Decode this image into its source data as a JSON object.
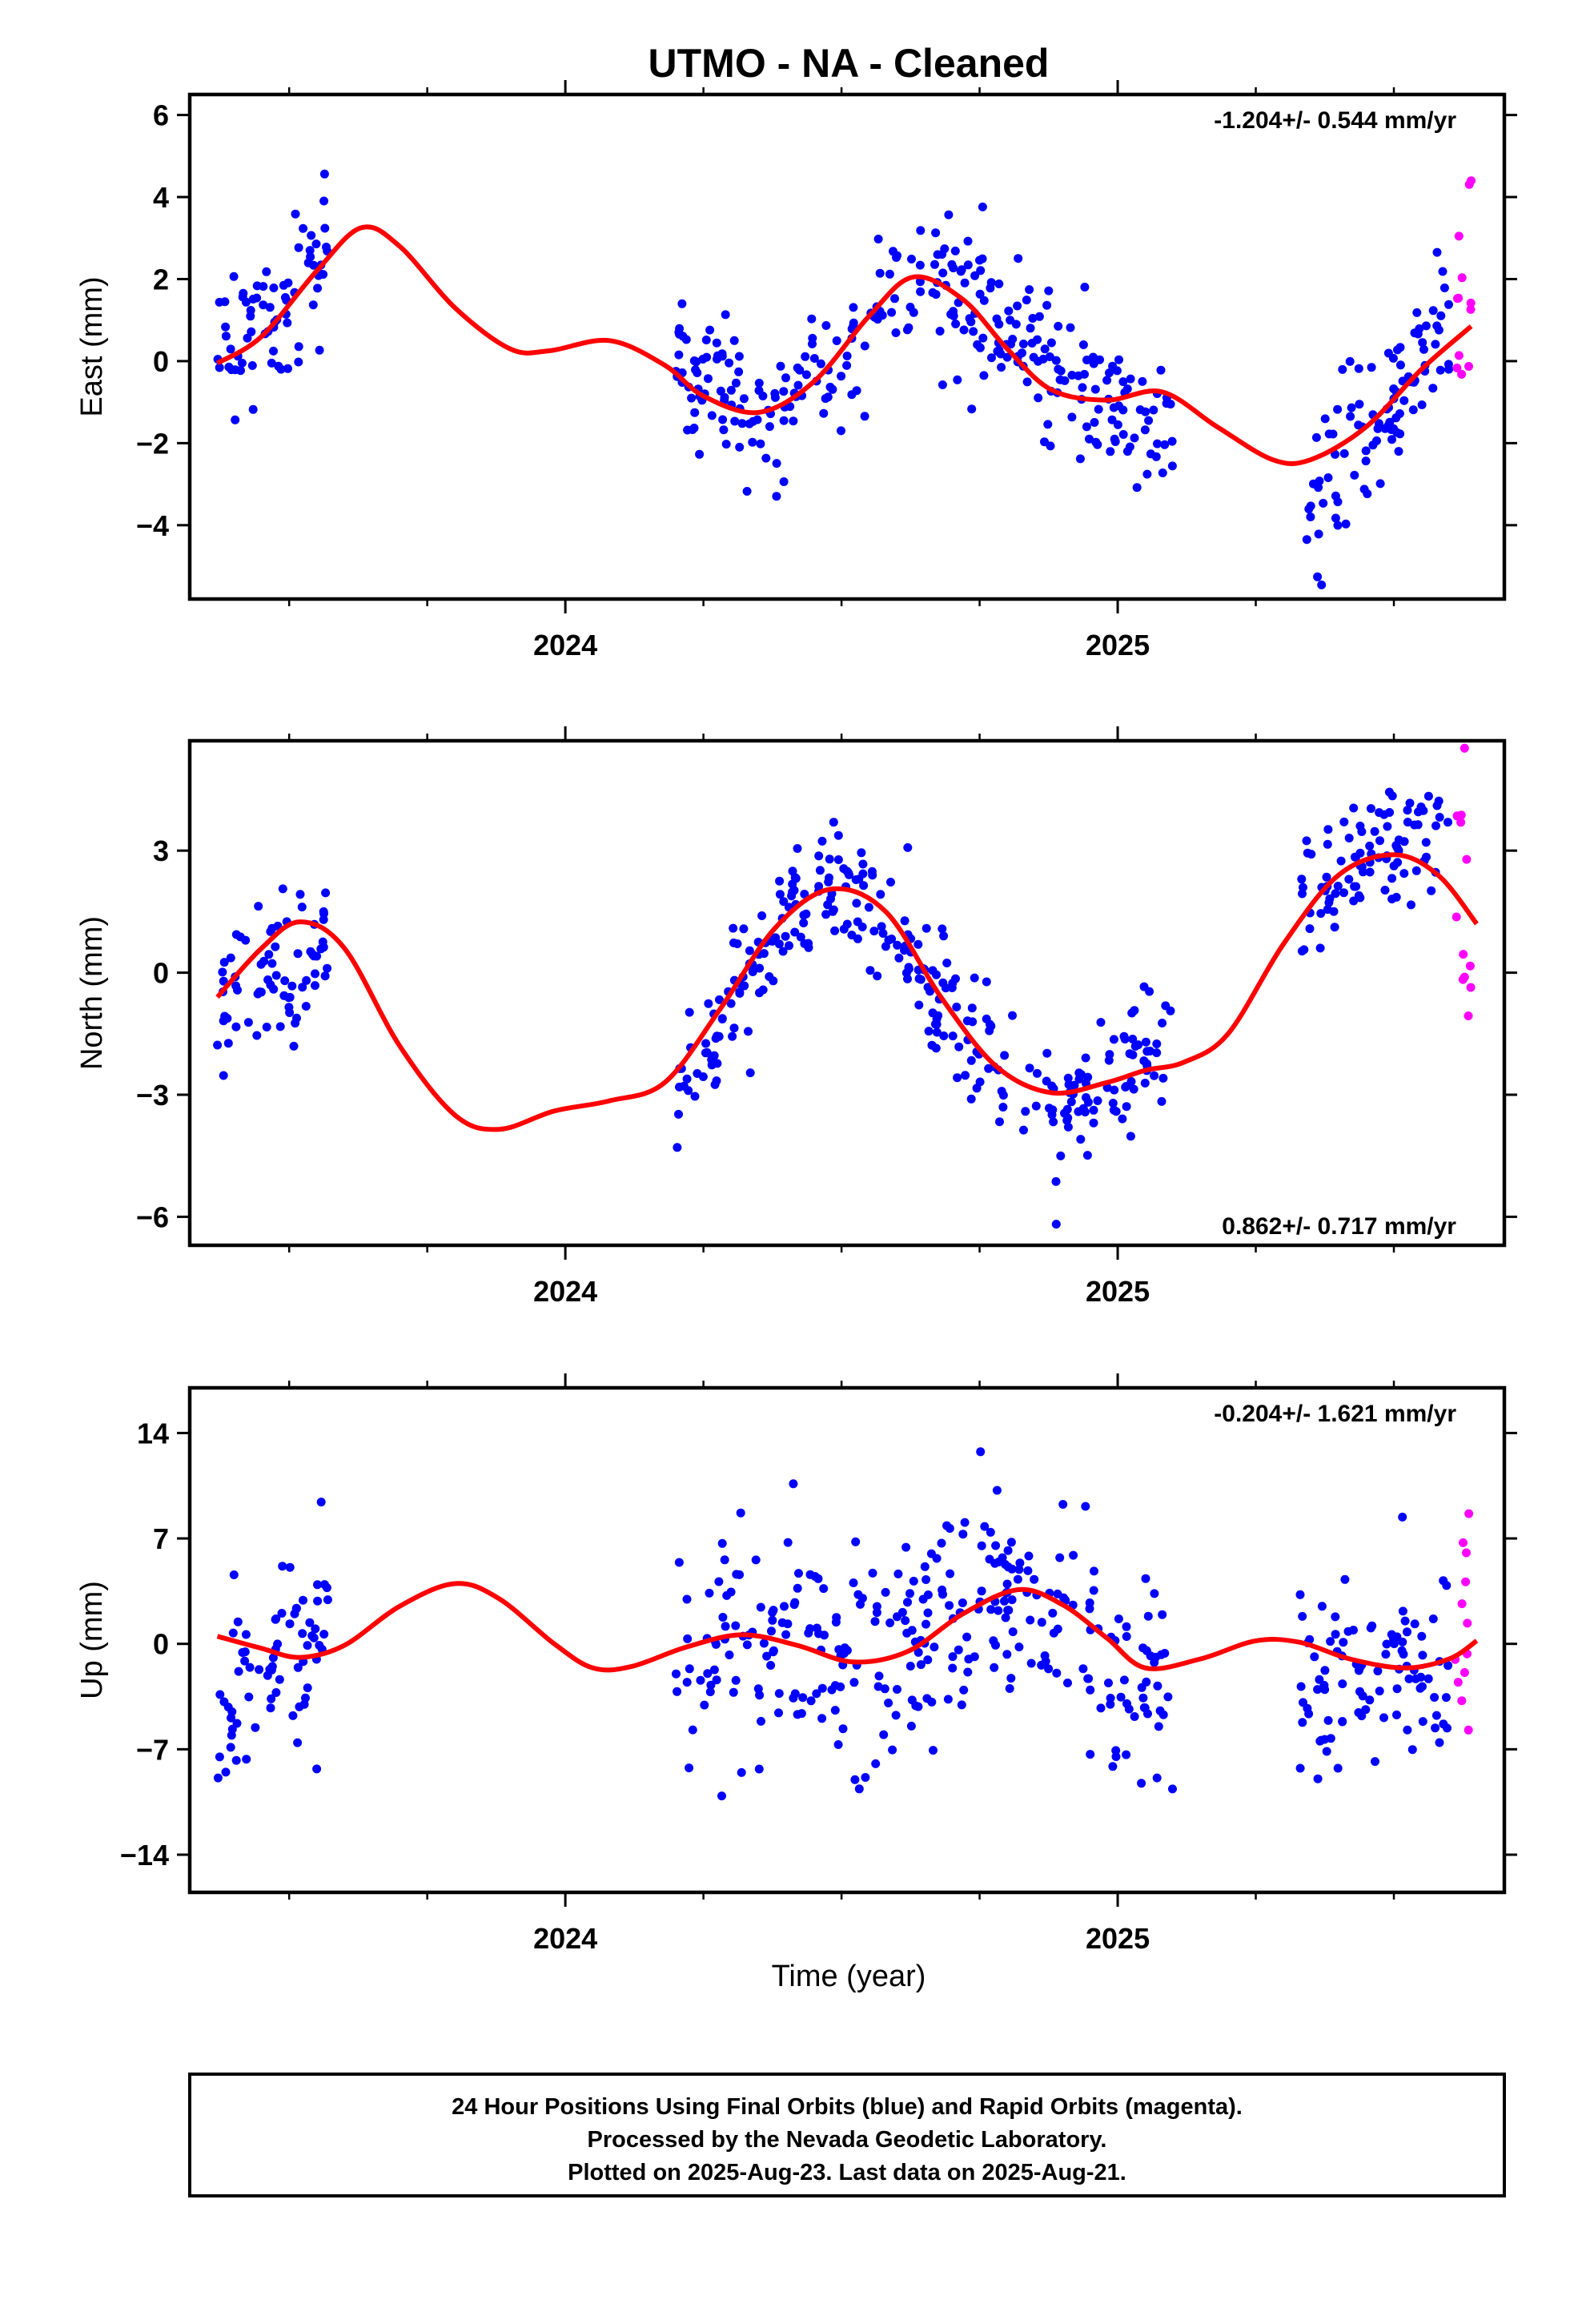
{
  "title": "UTMO  - NA - Cleaned",
  "xlabel": "Time (year)",
  "footer": {
    "line1": "24 Hour Positions Using Final Orbits (blue) and Rapid Orbits (magenta).",
    "line2": "Processed by the Nevada Geodetic Laboratory.",
    "line3": "Plotted on 2025-Aug-23. Last data on 2025-Aug-21."
  },
  "colors": {
    "final": "#0000ff",
    "rapid": "#ff00ff",
    "fit": "#ff0000"
  },
  "chart_data": [
    {
      "type": "scatter",
      "component": "east",
      "ylabel": "East (mm)",
      "rate": "-1.204+/- 0.544 mm/yr",
      "xlim": [
        2023.32,
        2025.7
      ],
      "ylim": [
        -5.8,
        6.5
      ],
      "yticks": [
        6,
        4,
        2,
        0,
        -2,
        -4
      ],
      "ytick_labels": [
        "6",
        "4",
        "2",
        "0",
        "−2",
        "−4"
      ],
      "xticks": [
        2024,
        2025
      ],
      "xtick_labels": [
        "2024",
        "2025"
      ],
      "fit": [
        [
          2023.37,
          -0.05
        ],
        [
          2023.45,
          0.6
        ],
        [
          2023.55,
          2.2
        ],
        [
          2023.63,
          3.25
        ],
        [
          2023.7,
          2.8
        ],
        [
          2023.8,
          1.3
        ],
        [
          2023.9,
          0.3
        ],
        [
          2023.97,
          0.25
        ],
        [
          2024.08,
          0.5
        ],
        [
          2024.18,
          -0.1
        ],
        [
          2024.25,
          -0.85
        ],
        [
          2024.35,
          -1.25
        ],
        [
          2024.45,
          -0.5
        ],
        [
          2024.55,
          1.1
        ],
        [
          2024.63,
          2.05
        ],
        [
          2024.72,
          1.5
        ],
        [
          2024.8,
          0.3
        ],
        [
          2024.88,
          -0.7
        ],
        [
          2024.98,
          -0.95
        ],
        [
          2025.08,
          -0.75
        ],
        [
          2025.18,
          -1.6
        ],
        [
          2025.28,
          -2.4
        ],
        [
          2025.35,
          -2.4
        ],
        [
          2025.45,
          -1.6
        ],
        [
          2025.55,
          -0.2
        ],
        [
          2025.64,
          0.85
        ]
      ],
      "final_groups": [
        {
          "x0": 2023.37,
          "x1": 2023.57,
          "cx": [
            2023.37,
            2023.47,
            2023.57
          ],
          "cy": [
            0.0,
            1.0,
            2.8
          ],
          "sd": 1.0,
          "n": 72
        },
        {
          "x0": 2024.2,
          "x1": 2024.97,
          "cx": [
            2024.2,
            2024.3,
            2024.4,
            2024.5,
            2024.6,
            2024.7,
            2024.8,
            2024.9,
            2024.97
          ],
          "cy": [
            0.2,
            -0.8,
            -1.2,
            -0.3,
            1.6,
            1.8,
            0.8,
            -0.4,
            -0.9
          ],
          "sd": 0.9,
          "n": 260
        },
        {
          "x0": 2024.98,
          "x1": 2025.1,
          "cx": [
            2024.98,
            2025.05,
            2025.1
          ],
          "cy": [
            -1.2,
            -1.5,
            -1.6
          ],
          "sd": 0.8,
          "n": 42
        },
        {
          "x0": 2025.33,
          "x1": 2025.6,
          "cx": [
            2025.33,
            2025.4,
            2025.5,
            2025.6
          ],
          "cy": [
            -4.0,
            -2.5,
            -1.0,
            0.9
          ],
          "sd": 1.0,
          "n": 95
        }
      ],
      "rapid_groups": [
        {
          "x0": 2025.61,
          "x1": 2025.64,
          "cx": [
            2025.61,
            2025.64
          ],
          "cy": [
            1.5,
            1.6
          ],
          "sd": 1.3,
          "n": 12
        }
      ]
    },
    {
      "type": "scatter",
      "component": "north",
      "ylabel": "North (mm)",
      "rate": "0.862+/- 0.717 mm/yr",
      "xlim": [
        2023.32,
        2025.7
      ],
      "ylim": [
        -6.7,
        5.7
      ],
      "yticks": [
        3,
        0,
        -3,
        -6
      ],
      "ytick_labels": [
        "3",
        "0",
        "−3",
        "−6"
      ],
      "xticks": [
        2024,
        2025
      ],
      "xtick_labels": [
        "2024",
        "2025"
      ],
      "fit": [
        [
          2023.37,
          -0.6
        ],
        [
          2023.45,
          0.6
        ],
        [
          2023.52,
          1.25
        ],
        [
          2023.6,
          0.6
        ],
        [
          2023.7,
          -1.8
        ],
        [
          2023.8,
          -3.5
        ],
        [
          2023.88,
          -3.85
        ],
        [
          2023.98,
          -3.4
        ],
        [
          2024.08,
          -3.15
        ],
        [
          2024.18,
          -2.7
        ],
        [
          2024.28,
          -0.9
        ],
        [
          2024.38,
          1.1
        ],
        [
          2024.48,
          2.05
        ],
        [
          2024.58,
          1.5
        ],
        [
          2024.68,
          -0.6
        ],
        [
          2024.78,
          -2.3
        ],
        [
          2024.88,
          -2.95
        ],
        [
          2024.98,
          -2.7
        ],
        [
          2025.05,
          -2.4
        ],
        [
          2025.12,
          -2.2
        ],
        [
          2025.2,
          -1.5
        ],
        [
          2025.3,
          0.7
        ],
        [
          2025.4,
          2.4
        ],
        [
          2025.5,
          2.9
        ],
        [
          2025.58,
          2.4
        ],
        [
          2025.65,
          1.2
        ]
      ],
      "final_groups": [
        {
          "x0": 2023.37,
          "x1": 2023.57,
          "cx": [
            2023.37,
            2023.47,
            2023.57
          ],
          "cy": [
            -0.7,
            0.3,
            0.5
          ],
          "sd": 0.9,
          "n": 72
        },
        {
          "x0": 2024.2,
          "x1": 2024.97,
          "cx": [
            2024.2,
            2024.3,
            2024.4,
            2024.5,
            2024.6,
            2024.7,
            2024.8,
            2024.9,
            2024.97
          ],
          "cy": [
            -3.0,
            -0.8,
            1.4,
            2.4,
            1.0,
            -1.3,
            -2.5,
            -3.4,
            -3.0
          ],
          "sd": 0.8,
          "n": 260
        },
        {
          "x0": 2024.98,
          "x1": 2025.1,
          "cx": [
            2024.98,
            2025.05,
            2025.1
          ],
          "cy": [
            -2.8,
            -2.2,
            -1.8
          ],
          "sd": 0.7,
          "n": 42
        },
        {
          "x0": 2025.33,
          "x1": 2025.6,
          "cx": [
            2025.33,
            2025.4,
            2025.5,
            2025.6
          ],
          "cy": [
            1.3,
            2.5,
            3.2,
            3.3
          ],
          "sd": 0.8,
          "n": 95
        }
      ],
      "rapid_groups": [
        {
          "x0": 2025.61,
          "x1": 2025.64,
          "cx": [
            2025.61,
            2025.64
          ],
          "cy": [
            2.0,
            0.0
          ],
          "sd": 1.5,
          "n": 12
        }
      ]
    },
    {
      "type": "scatter",
      "component": "up",
      "ylabel": "Up (mm)",
      "rate": "-0.204+/- 1.621 mm/yr",
      "xlim": [
        2023.32,
        2025.7
      ],
      "ylim": [
        -16.5,
        17.0
      ],
      "yticks": [
        14,
        7,
        0,
        -7,
        -14
      ],
      "ytick_labels": [
        "14",
        "7",
        "0",
        "−7",
        "−14"
      ],
      "xticks": [
        2024,
        2025
      ],
      "xtick_labels": [
        "2024",
        "2025"
      ],
      "fit": [
        [
          2023.37,
          0.5
        ],
        [
          2023.45,
          -0.3
        ],
        [
          2023.52,
          -0.9
        ],
        [
          2023.6,
          -0.1
        ],
        [
          2023.7,
          2.5
        ],
        [
          2023.8,
          4.0
        ],
        [
          2023.88,
          3.0
        ],
        [
          2023.98,
          0.0
        ],
        [
          2024.05,
          -1.6
        ],
        [
          2024.12,
          -1.5
        ],
        [
          2024.22,
          -0.2
        ],
        [
          2024.32,
          0.6
        ],
        [
          2024.42,
          -0.1
        ],
        [
          2024.52,
          -1.2
        ],
        [
          2024.62,
          -0.5
        ],
        [
          2024.72,
          2.0
        ],
        [
          2024.82,
          3.6
        ],
        [
          2024.9,
          2.6
        ],
        [
          2024.98,
          0.4
        ],
        [
          2025.05,
          -1.6
        ],
        [
          2025.15,
          -1.0
        ],
        [
          2025.25,
          0.2
        ],
        [
          2025.33,
          0.1
        ],
        [
          2025.42,
          -1.0
        ],
        [
          2025.52,
          -1.6
        ],
        [
          2025.6,
          -1.0
        ],
        [
          2025.65,
          0.2
        ]
      ],
      "final_groups": [
        {
          "x0": 2023.37,
          "x1": 2023.57,
          "cx": [
            2023.37,
            2023.47,
            2023.57
          ],
          "cy": [
            -3.5,
            -0.5,
            1.5
          ],
          "sd": 3.5,
          "n": 72
        },
        {
          "x0": 2024.2,
          "x1": 2024.97,
          "cx": [
            2024.2,
            2024.3,
            2024.4,
            2024.5,
            2024.6,
            2024.7,
            2024.8,
            2024.9,
            2024.97
          ],
          "cy": [
            -0.8,
            0.8,
            0.0,
            -1.0,
            -0.6,
            2.2,
            3.0,
            1.0,
            -1.5
          ],
          "sd": 3.6,
          "n": 260
        },
        {
          "x0": 2024.98,
          "x1": 2025.1,
          "cx": [
            2024.98,
            2025.05,
            2025.1
          ],
          "cy": [
            -2.5,
            -3.2,
            -2.0
          ],
          "sd": 3.2,
          "n": 42
        },
        {
          "x0": 2025.33,
          "x1": 2025.6,
          "cx": [
            2025.33,
            2025.4,
            2025.5,
            2025.6
          ],
          "cy": [
            -2.5,
            -2.0,
            -1.5,
            -3.0
          ],
          "sd": 3.2,
          "n": 95
        }
      ],
      "rapid_groups": [
        {
          "x0": 2025.61,
          "x1": 2025.64,
          "cx": [
            2025.61,
            2025.64
          ],
          "cy": [
            -1.5,
            -1.0
          ],
          "sd": 5.2,
          "n": 12
        }
      ]
    }
  ]
}
